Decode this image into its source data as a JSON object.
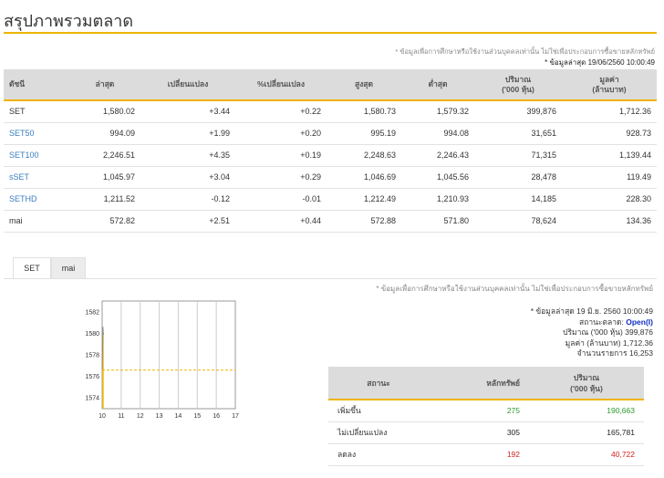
{
  "page": {
    "title": "สรุปภาพรวมตลาด"
  },
  "note_top": {
    "disclaimer": "* ข้อมูลเพื่อการศึกษาหรือใช้งานส่วนบุคคลเท่านั้น ไม่ใช่เพื่อประกอบการซื้อขายหลักทรัพย์",
    "updated": "* ข้อมูลล่าสุด 19/06/2560 10:00:49"
  },
  "market_table": {
    "headers": {
      "index": "ดัชนี",
      "last": "ล่าสุด",
      "change": "เปลี่ยนแปลง",
      "pct_change": "%เปลี่ยนแปลง",
      "high": "สูงสุด",
      "low": "ต่ำสุด",
      "volume_1": "ปริมาณ",
      "volume_2": "('000 หุ้น)",
      "value_1": "มูลค่า",
      "value_2": "(ล้านบาท)"
    },
    "rows": [
      {
        "index": "SET",
        "last": "1,580.02",
        "change": "+3.44",
        "pct": "+0.22",
        "high": "1,580.73",
        "low": "1,579.32",
        "volume": "399,876",
        "value": "1,712.36"
      },
      {
        "index": "SET50",
        "last": "994.09",
        "change": "+1.99",
        "pct": "+0.20",
        "high": "995.19",
        "low": "994.08",
        "volume": "31,651",
        "value": "928.73"
      },
      {
        "index": "SET100",
        "last": "2,246.51",
        "change": "+4.35",
        "pct": "+0.19",
        "high": "2,248.63",
        "low": "2,246.43",
        "volume": "71,315",
        "value": "1,139.44"
      },
      {
        "index": "sSET",
        "last": "1,045.97",
        "change": "+3.04",
        "pct": "+0.29",
        "high": "1,046.69",
        "low": "1,045.56",
        "volume": "28,478",
        "value": "119.49"
      },
      {
        "index": "SETHD",
        "last": "1,211.52",
        "change": "-0.12",
        "pct": "-0.01",
        "high": "1,212.49",
        "low": "1,210.93",
        "volume": "14,185",
        "value": "228.30"
      },
      {
        "index": "mai",
        "last": "572.82",
        "change": "+2.51",
        "pct": "+0.44",
        "high": "572.88",
        "low": "571.80",
        "volume": "78,624",
        "value": "134.36"
      }
    ]
  },
  "tabs": [
    {
      "label": "SET",
      "active": true
    },
    {
      "label": "mai",
      "active": false
    }
  ],
  "chart_data": {
    "type": "line",
    "x_ticks": [
      "10",
      "11",
      "12",
      "13",
      "14",
      "15",
      "16",
      "17"
    ],
    "y_ticks": [
      "1582",
      "1580",
      "1578",
      "1576",
      "1574"
    ],
    "ylim": [
      1573,
      1583
    ],
    "series": [
      {
        "x": [
          10.0,
          10.02,
          10.04,
          10.06,
          10.08
        ],
        "values": [
          1576.6,
          1578.5,
          1580.6,
          1579.9,
          1580.02
        ]
      }
    ],
    "prior_close": 1576.58,
    "colors": {
      "fill": "#f0b400",
      "line": "#888888",
      "ref": "#f0b400",
      "grid": "#cccccc"
    }
  },
  "side_note": {
    "disclaimer": "* ข้อมูลเพื่อการศึกษาหรือใช้งานส่วนบุคคลเท่านั้น ไม่ใช่เพื่อประกอบการซื้อขายหลักทรัพย์",
    "updated": "* ข้อมูลล่าสุด 19 มิ.ย. 2560 10:00:49",
    "market_status_label": "สถานะตลาด:",
    "market_status_value": "Open(I)",
    "volume_label": "ปริมาณ ('000 หุ้น)",
    "volume_value": "399,876",
    "value_label": "มูลค่า (ล้านบาท)",
    "value_value": "1,712.36",
    "deals_label": "จำนวนรายการ",
    "deals_value": "16,253"
  },
  "status_table": {
    "headers": {
      "status": "สถานะ",
      "securities": "หลักทรัพย์",
      "volume_1": "ปริมาณ",
      "volume_2": "('000 หุ้น)"
    },
    "rows": [
      {
        "label": "เพิ่มขึ้น",
        "count": "275",
        "volume": "190,663",
        "tone": "pos"
      },
      {
        "label": "ไม่เปลี่ยนแปลง",
        "count": "305",
        "volume": "165,781",
        "tone": "none"
      },
      {
        "label": "ลดลง",
        "count": "192",
        "volume": "40,722",
        "tone": "neg"
      }
    ]
  }
}
